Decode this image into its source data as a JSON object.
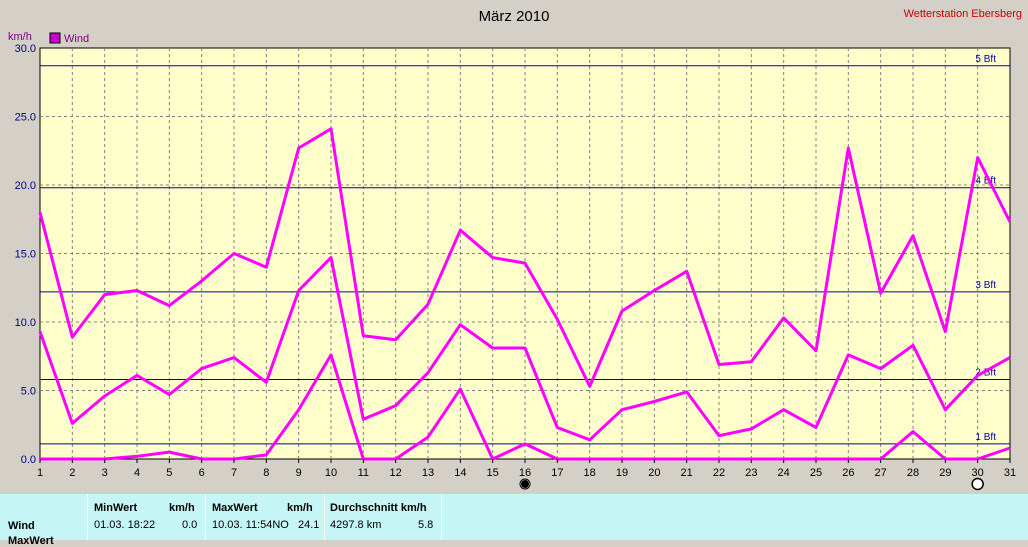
{
  "chart_data": {
    "type": "line",
    "title": "März 2010",
    "station": "Wetterstation Ebersberg",
    "ylabel": "km/h",
    "ylim": [
      0,
      30
    ],
    "yticks": [
      "0.0",
      "5.0",
      "10.0",
      "15.0",
      "20.0",
      "25.0",
      "30.0"
    ],
    "x": [
      1,
      2,
      3,
      4,
      5,
      6,
      7,
      8,
      9,
      10,
      11,
      12,
      13,
      14,
      15,
      16,
      17,
      18,
      19,
      20,
      21,
      22,
      23,
      24,
      25,
      26,
      27,
      28,
      29,
      30,
      31
    ],
    "legend": [
      "Wind"
    ],
    "series": [
      {
        "values": [
          18.0,
          8.9,
          12.0,
          12.3,
          11.2,
          13.0,
          15.0,
          14.0,
          22.7,
          24.1,
          9.0,
          8.7,
          11.3,
          16.7,
          14.7,
          14.3,
          10.2,
          5.3,
          10.8,
          12.3,
          13.7,
          6.9,
          7.1,
          10.3,
          7.9,
          22.7,
          12.1,
          16.3,
          9.3,
          22.0,
          17.3
        ]
      },
      {
        "values": [
          9.3,
          2.6,
          4.6,
          6.1,
          4.7,
          6.6,
          7.4,
          5.6,
          12.3,
          14.7,
          2.9,
          3.9,
          6.3,
          9.8,
          8.1,
          8.1,
          2.3,
          1.4,
          3.6,
          4.2,
          4.9,
          1.7,
          2.2,
          3.6,
          2.3,
          7.6,
          6.6,
          8.3,
          3.6,
          6.1,
          7.4
        ]
      },
      {
        "values": [
          0.0,
          0.0,
          0.0,
          0.2,
          0.5,
          0.0,
          0.0,
          0.3,
          3.6,
          7.6,
          0.0,
          0.0,
          1.6,
          5.1,
          0.0,
          1.1,
          0.0,
          0.0,
          0.0,
          0.0,
          0.0,
          0.0,
          0.0,
          0.0,
          0.0,
          0.0,
          0.0,
          2.0,
          0.0,
          0.0,
          0.8
        ]
      }
    ],
    "bft_lines": [
      {
        "label": "1 Bft",
        "value": 1.1
      },
      {
        "label": "2 Bft",
        "value": 5.8
      },
      {
        "label": "3 Bft",
        "value": 12.2
      },
      {
        "label": "4 Bft",
        "value": 19.8
      },
      {
        "label": "5 Bft",
        "value": 28.7
      }
    ],
    "markers": [
      {
        "x": 16,
        "icon": "new-moon-icon"
      },
      {
        "x": 30,
        "icon": "full-moon-icon"
      }
    ],
    "grid": true,
    "legend_placement": "top-left",
    "colors": {
      "series": "#ff00ff",
      "bft": "#0000aa",
      "background": "#ffffcc",
      "grid": "#808080",
      "axis_text": "#000080",
      "station": "#cc0000"
    }
  },
  "summary": {
    "headers": {
      "min": "MinWert",
      "min_unit": "km/h",
      "max": "MaxWert",
      "max_unit": "km/h",
      "avg": "Durchschnitt km/h"
    },
    "rows": [
      {
        "name": "Wind",
        "min_time": "01.03.  18:22",
        "min_val": "0.0",
        "max_time": "10.03.  11:54NO",
        "max_val": "24.1",
        "avg_dist": "4297.8 km",
        "avg_val": "5.8"
      },
      {
        "name": "MaxWert"
      }
    ]
  }
}
